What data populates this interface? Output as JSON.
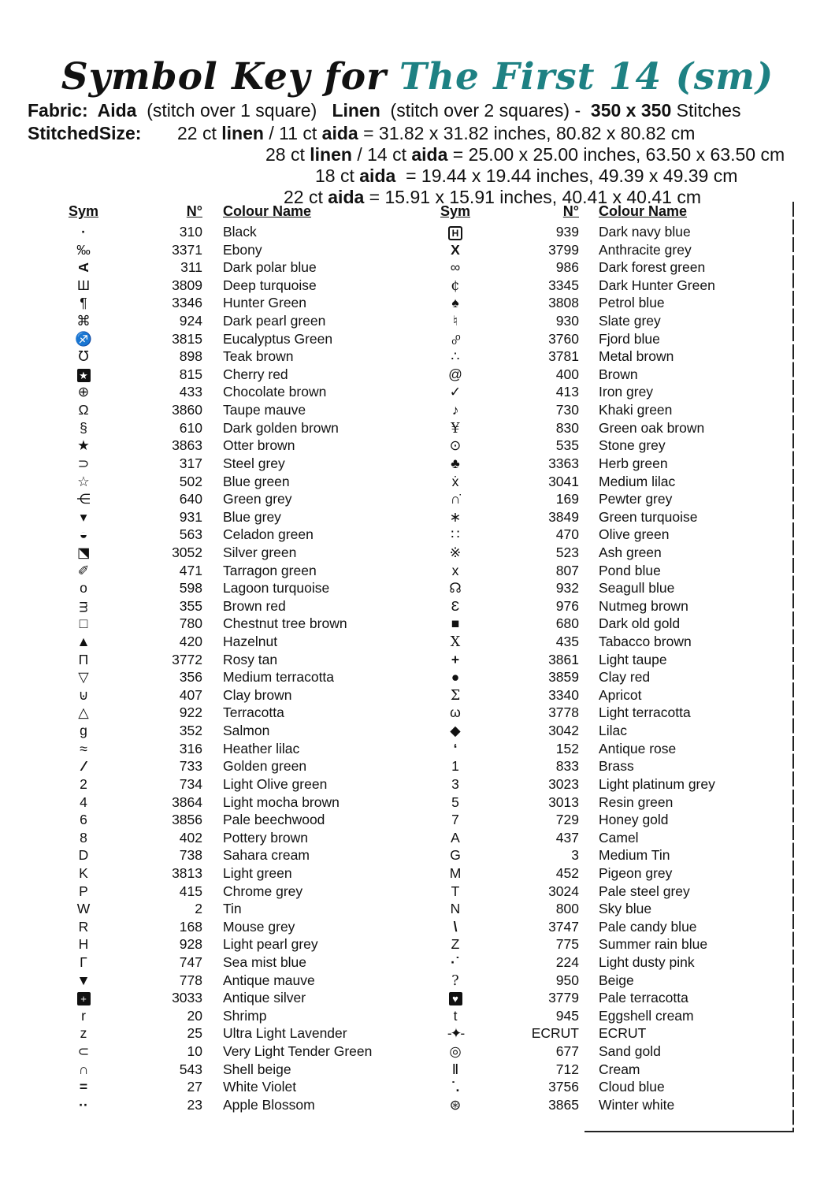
{
  "colors": {
    "title_accent": "#1e8183",
    "ink": "#111111"
  },
  "title": {
    "prefix": "Symbol Key for",
    "name": "The First 14 (sm)"
  },
  "fabric_line": [
    {
      "t": "Fabric:  Aida",
      "b": 1
    },
    {
      "t": "  (stitch over 1 square)   ",
      "b": 0
    },
    {
      "t": "Linen",
      "b": 1
    },
    {
      "t": "  (stitch over 2 squares) -  ",
      "b": 0
    },
    {
      "t": "350 x 350",
      "b": 1
    },
    {
      "t": " Stitches",
      "b": 0
    }
  ],
  "stitched_label": "StitchedSize:",
  "size_lines": [
    [
      {
        "t": "22 ct ",
        "b": 0
      },
      {
        "t": "linen",
        "b": 1
      },
      {
        "t": " / 11 ct ",
        "b": 0
      },
      {
        "t": "aida",
        "b": 1
      },
      {
        "t": " = 31.82 x 31.82 inches, 80.82 x 80.82 cm",
        "b": 0
      }
    ],
    [
      {
        "t": "28 ct ",
        "b": 0
      },
      {
        "t": "linen",
        "b": 1
      },
      {
        "t": " / 14 ct ",
        "b": 0
      },
      {
        "t": "aida",
        "b": 1
      },
      {
        "t": " = 25.00 x 25.00 inches, 63.50 x 63.50 cm",
        "b": 0
      }
    ],
    [
      {
        "t": "18 ct ",
        "b": 0
      },
      {
        "t": "aida",
        "b": 1
      },
      {
        "t": "  = 19.44 x 19.44 inches, 49.39 x 49.39 cm",
        "b": 0
      }
    ],
    [
      {
        "t": "22 ct ",
        "b": 0
      },
      {
        "t": "aida",
        "b": 1
      },
      {
        "t": " = 15.91 x 15.91 inches, 40.41 x 40.41 cm",
        "b": 0
      }
    ]
  ],
  "table": {
    "headers": {
      "sym": "Sym",
      "num": "N°",
      "name": "Colour Name"
    },
    "left_rows": [
      {
        "sym": "·",
        "style": "bold",
        "num": "310",
        "name": "Black"
      },
      {
        "sym": "‰",
        "num": "3371",
        "name": "Ebony"
      },
      {
        "sym": "A",
        "style": "rot270",
        "num": "311",
        "name": "Dark polar blue"
      },
      {
        "sym": "Ш",
        "num": "3809",
        "name": "Deep turquoise"
      },
      {
        "sym": "¶",
        "num": "3346",
        "name": "Hunter Green"
      },
      {
        "sym": "⌘",
        "num": "924",
        "name": "Dark pearl green"
      },
      {
        "sym": "♐",
        "num": "3815",
        "name": "Eucalyptus Green"
      },
      {
        "sym": "℧",
        "num": "898",
        "name": "Teak brown"
      },
      {
        "sym": "★",
        "style": "inv",
        "num": "815",
        "name": "Cherry red"
      },
      {
        "sym": "⊕",
        "num": "433",
        "name": "Chocolate brown"
      },
      {
        "sym": "Ω",
        "num": "3860",
        "name": "Taupe mauve"
      },
      {
        "sym": "§",
        "num": "610",
        "name": "Dark golden brown"
      },
      {
        "sym": "★",
        "num": "3863",
        "name": "Otter brown"
      },
      {
        "sym": "⊃",
        "num": "317",
        "name": "Steel grey"
      },
      {
        "sym": "☆",
        "num": "502",
        "name": "Blue green"
      },
      {
        "sym": "⋲",
        "num": "640",
        "name": "Green grey"
      },
      {
        "sym": "▾",
        "num": "931",
        "name": "Blue grey"
      },
      {
        "sym": "◒",
        "num": "563",
        "name": "Celadon green"
      },
      {
        "sym": "◩",
        "style": "fliph",
        "num": "3052",
        "name": "Silver green"
      },
      {
        "sym": "✐",
        "num": "471",
        "name": "Tarragon green"
      },
      {
        "sym": "o",
        "num": "598",
        "name": "Lagoon turquoise"
      },
      {
        "sym": "ᴟ",
        "num": "355",
        "name": "Brown red"
      },
      {
        "sym": "□",
        "num": "780",
        "name": "Chestnut tree brown"
      },
      {
        "sym": "▲",
        "num": "420",
        "name": "Hazelnut"
      },
      {
        "sym": "Π",
        "num": "3772",
        "name": "Rosy tan"
      },
      {
        "sym": "▽",
        "num": "356",
        "name": "Medium terracotta"
      },
      {
        "sym": "⊍",
        "num": "407",
        "name": "Clay brown"
      },
      {
        "sym": "△",
        "num": "922",
        "name": "Terracotta"
      },
      {
        "sym": "g",
        "num": "352",
        "name": "Salmon"
      },
      {
        "sym": "≈",
        "num": "316",
        "name": "Heather lilac"
      },
      {
        "sym": "∕∕",
        "style": "tight",
        "num": "733",
        "name": "Golden green"
      },
      {
        "sym": "2",
        "num": "734",
        "name": "Light Olive green"
      },
      {
        "sym": "4",
        "num": "3864",
        "name": "Light mocha brown"
      },
      {
        "sym": "6",
        "num": "3856",
        "name": "Pale beechwood"
      },
      {
        "sym": "8",
        "num": "402",
        "name": "Pottery brown"
      },
      {
        "sym": "D",
        "num": "738",
        "name": "Sahara cream"
      },
      {
        "sym": "K",
        "num": "3813",
        "name": "Light green"
      },
      {
        "sym": "P",
        "num": "415",
        "name": "Chrome grey"
      },
      {
        "sym": "W",
        "num": "2",
        "name": "Tin"
      },
      {
        "sym": "R",
        "num": "168",
        "name": "Mouse grey"
      },
      {
        "sym": "H",
        "num": "928",
        "name": "Light pearl grey"
      },
      {
        "sym": "Γ",
        "num": "747",
        "name": "Sea mist blue"
      },
      {
        "sym": "▼",
        "num": "778",
        "name": "Antique mauve"
      },
      {
        "sym": "+",
        "style": "inv",
        "num": "3033",
        "name": "Antique silver"
      },
      {
        "sym": "r",
        "num": "20",
        "name": "Shrimp"
      },
      {
        "sym": "z",
        "num": "25",
        "name": "Ultra Light Lavender"
      },
      {
        "sym": "⊂",
        "num": "10",
        "name": "Very Light Tender Green"
      },
      {
        "sym": "∩",
        "num": "543",
        "name": "Shell beige"
      },
      {
        "sym": "=",
        "style": "bold",
        "num": "27",
        "name": "White Violet"
      },
      {
        "sym": "··",
        "style": "bold",
        "num": "23",
        "name": "Apple Blossom"
      }
    ],
    "right_rows": [
      {
        "sym": "H",
        "style": "boxed",
        "num": "939",
        "name": "Dark navy blue"
      },
      {
        "sym": "X",
        "style": "bold",
        "num": "3799",
        "name": "Anthracite grey"
      },
      {
        "sym": "∞",
        "num": "986",
        "name": "Dark forest green"
      },
      {
        "sym": "¢",
        "style": "serif",
        "num": "3345",
        "name": "Dark Hunter Green"
      },
      {
        "sym": "♠",
        "num": "3808",
        "name": "Petrol blue"
      },
      {
        "sym": "♮",
        "num": "930",
        "name": "Slate grey"
      },
      {
        "sym": "ₒᵒ",
        "style": "tight",
        "num": "3760",
        "name": "Fjord blue"
      },
      {
        "sym": "∴",
        "num": "3781",
        "name": "Metal brown"
      },
      {
        "sym": "@",
        "num": "400",
        "name": "Brown"
      },
      {
        "sym": "✓",
        "num": "413",
        "name": "Iron grey"
      },
      {
        "sym": "♪",
        "num": "730",
        "name": "Khaki green"
      },
      {
        "sym": "¥",
        "style": "serif",
        "num": "830",
        "name": "Green oak brown"
      },
      {
        "sym": "⊙",
        "num": "535",
        "name": "Stone grey"
      },
      {
        "sym": "♣",
        "num": "3363",
        "name": "Herb green"
      },
      {
        "sym": "ẋ",
        "num": "3041",
        "name": "Medium lilac"
      },
      {
        "sym": "∩̇",
        "num": "169",
        "name": "Pewter grey"
      },
      {
        "sym": "∗",
        "num": "3849",
        "name": "Green turquoise"
      },
      {
        "sym": "∷",
        "num": "470",
        "name": "Olive green"
      },
      {
        "sym": "※",
        "num": "523",
        "name": "Ash green"
      },
      {
        "sym": "x",
        "num": "807",
        "name": "Pond blue"
      },
      {
        "sym": "☊",
        "num": "932",
        "name": "Seagull blue"
      },
      {
        "sym": "Ɛ",
        "num": "976",
        "name": "Nutmeg brown"
      },
      {
        "sym": "■",
        "num": "680",
        "name": "Dark old gold"
      },
      {
        "sym": "X",
        "style": "serif",
        "num": "435",
        "name": "Tabacco brown"
      },
      {
        "sym": "+",
        "style": "bold",
        "num": "3861",
        "name": "Light taupe"
      },
      {
        "sym": "●",
        "num": "3859",
        "name": "Clay red"
      },
      {
        "sym": "Σ",
        "style": "serif",
        "num": "3340",
        "name": "Apricot"
      },
      {
        "sym": "ω",
        "num": "3778",
        "name": "Light terracotta"
      },
      {
        "sym": "◆",
        "num": "3042",
        "name": "Lilac"
      },
      {
        "sym": "‘",
        "style": "bold",
        "num": "152",
        "name": "Antique rose"
      },
      {
        "sym": "1",
        "num": "833",
        "name": "Brass"
      },
      {
        "sym": "3",
        "num": "3023",
        "name": "Light platinum grey"
      },
      {
        "sym": "5",
        "num": "3013",
        "name": "Resin green"
      },
      {
        "sym": "7",
        "num": "729",
        "name": "Honey gold"
      },
      {
        "sym": "A",
        "num": "437",
        "name": "Camel"
      },
      {
        "sym": "G",
        "num": "3",
        "name": "Medium Tin"
      },
      {
        "sym": "M",
        "num": "452",
        "name": "Pigeon grey"
      },
      {
        "sym": "T",
        "num": "3024",
        "name": "Pale steel grey"
      },
      {
        "sym": "N",
        "num": "800",
        "name": "Sky blue"
      },
      {
        "sym": "\\",
        "style": "bold",
        "num": "3747",
        "name": "Pale candy blue"
      },
      {
        "sym": "Z",
        "num": "775",
        "name": "Summer rain blue"
      },
      {
        "sym": "·˙",
        "style": "bold",
        "num": "224",
        "name": "Light dusty pink"
      },
      {
        "sym": "?",
        "style": "serif",
        "num": "950",
        "name": "Beige"
      },
      {
        "sym": "♥",
        "style": "inv",
        "num": "3779",
        "name": "Pale terracotta"
      },
      {
        "sym": "t",
        "num": "945",
        "name": "Eggshell cream"
      },
      {
        "sym": "-✦-",
        "style": "tight",
        "num": "ECRUT",
        "name": "ECRUT"
      },
      {
        "sym": "◎",
        "num": "677",
        "name": "Sand gold"
      },
      {
        "sym": "Ⅱ",
        "num": "712",
        "name": "Cream"
      },
      {
        "sym": "˙.",
        "style": "bold",
        "num": "3756",
        "name": "Cloud blue"
      },
      {
        "sym": "⊛",
        "num": "3865",
        "name": "Winter white"
      }
    ]
  }
}
